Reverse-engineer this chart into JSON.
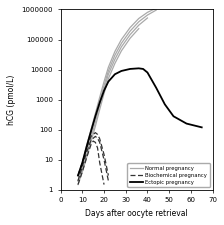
{
  "title": "",
  "xlabel": "Days after oocyte retrieval",
  "ylabel": "hCG (pmol/L)",
  "xlim": [
    0,
    70
  ],
  "ylim_log": [
    1,
    1000000
  ],
  "yticks": [
    1,
    10,
    100,
    1000,
    10000,
    100000,
    1000000
  ],
  "ytick_labels": [
    "1",
    "10",
    "100",
    "1000",
    "10000",
    "100000",
    "1000000"
  ],
  "xticks": [
    0,
    10,
    20,
    30,
    40,
    50,
    60,
    70
  ],
  "legend_labels": [
    "Normal pregnancy",
    "Biochemical pregnancy",
    "Ectopic pregnancy"
  ],
  "background_color": "#ffffff",
  "normal_pregnancies": [
    {
      "x": [
        8,
        10,
        12,
        14,
        16,
        18,
        20,
        22,
        25,
        28,
        32,
        36,
        40,
        44
      ],
      "y": [
        3,
        8,
        30,
        100,
        350,
        1200,
        4000,
        12000,
        40000,
        100000,
        250000,
        500000,
        800000,
        1100000
      ]
    },
    {
      "x": [
        8,
        10,
        12,
        14,
        16,
        18,
        20,
        22,
        25,
        28,
        32,
        36,
        40,
        44
      ],
      "y": [
        2,
        6,
        22,
        75,
        260,
        900,
        3000,
        9000,
        30000,
        75000,
        190000,
        390000,
        650000,
        950000
      ]
    },
    {
      "x": [
        8,
        10,
        12,
        14,
        16,
        18,
        20,
        22,
        25,
        28,
        32,
        36,
        40
      ],
      "y": [
        2,
        5,
        15,
        55,
        180,
        650,
        2200,
        7000,
        22000,
        57000,
        145000,
        300000,
        520000
      ]
    },
    {
      "x": [
        8,
        10,
        12,
        14,
        16,
        18,
        20,
        22,
        25,
        28,
        32,
        36
      ],
      "y": [
        1.5,
        4,
        12,
        40,
        130,
        470,
        1600,
        5000,
        16000,
        42000,
        110000,
        230000
      ]
    }
  ],
  "biochemical_pregnancies": [
    {
      "x": [
        8,
        10,
        12,
        14,
        16,
        17,
        18,
        20,
        22
      ],
      "y": [
        3,
        8,
        25,
        60,
        80,
        70,
        50,
        15,
        3
      ]
    },
    {
      "x": [
        8,
        10,
        12,
        14,
        16,
        17,
        18,
        20,
        22
      ],
      "y": [
        2,
        6,
        18,
        45,
        60,
        52,
        38,
        10,
        2
      ]
    },
    {
      "x": [
        8,
        10,
        12,
        14,
        15,
        16,
        17,
        18,
        20
      ],
      "y": [
        1.5,
        4,
        12,
        32,
        42,
        38,
        25,
        8,
        1.5
      ]
    }
  ],
  "ectopic_pregnancy": {
    "x": [
      8,
      10,
      12,
      14,
      16,
      18,
      20,
      22,
      25,
      28,
      32,
      36,
      38,
      40,
      44,
      48,
      52,
      58,
      65
    ],
    "y": [
      3,
      8,
      28,
      90,
      280,
      800,
      2000,
      4000,
      7000,
      9000,
      10500,
      11000,
      10500,
      8000,
      2500,
      700,
      280,
      160,
      120
    ]
  }
}
